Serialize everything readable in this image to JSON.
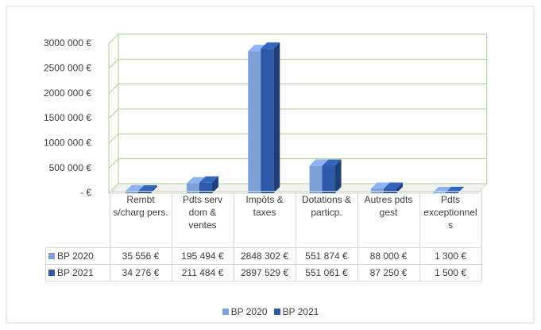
{
  "chart_data": {
    "type": "bar3d",
    "categories": [
      "Rembt s/charg pers.",
      "Pdts serv dom & ventes",
      "Impôts & taxes",
      "Dotations & particp.",
      "Autres pdts gest",
      "Pdts exceptionnels"
    ],
    "series": [
      {
        "name": "BP 2020",
        "color": "#7f9fd9",
        "values": [
          35556,
          195494,
          2848302,
          551874,
          88000,
          1300
        ],
        "value_labels": [
          "35 556 €",
          "195 494 €",
          "2848 302 €",
          "551 874 €",
          "88 000 €",
          "1 300 €"
        ]
      },
      {
        "name": "BP 2021",
        "color": "#2e5aa8",
        "values": [
          34276,
          211484,
          2897529,
          551061,
          87250,
          1500
        ],
        "value_labels": [
          "34 276 €",
          "211 484 €",
          "2897 529 €",
          "551 061 €",
          "87 250 €",
          "1 500 €"
        ]
      }
    ],
    "ylim": [
      0,
      3000000
    ],
    "yticks": [
      {
        "value": 0,
        "label": "-   €"
      },
      {
        "value": 500000,
        "label": "500 000 €"
      },
      {
        "value": 1000000,
        "label": "1000 000 €"
      },
      {
        "value": 1500000,
        "label": "1500 000 €"
      },
      {
        "value": 2000000,
        "label": "2000 000 €"
      },
      {
        "value": 2500000,
        "label": "2500 000 €"
      },
      {
        "value": 3000000,
        "label": "3000 000 €"
      }
    ],
    "grid": true,
    "legend": "bottom"
  }
}
